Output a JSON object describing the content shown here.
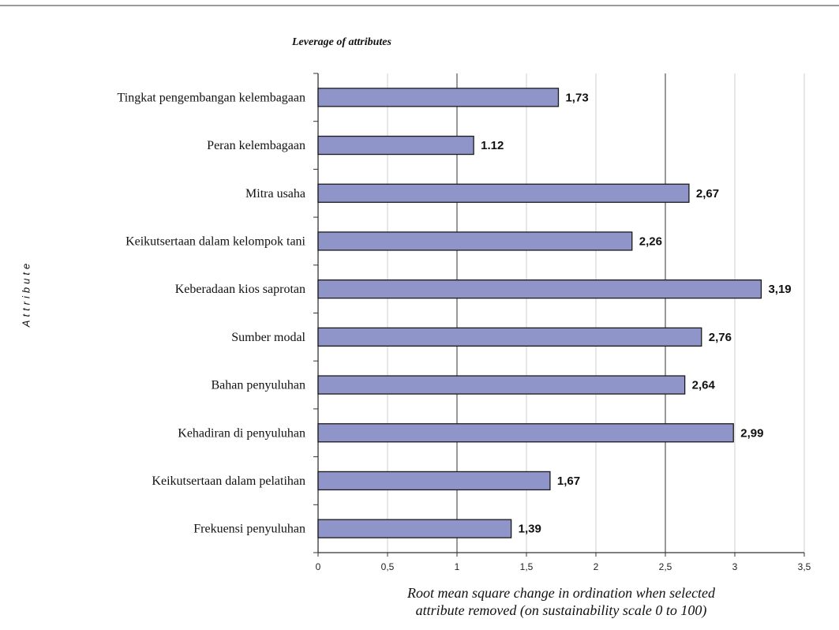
{
  "chart_data": {
    "type": "bar",
    "orientation": "horizontal",
    "title": "Leverage of attributes",
    "xlabel_lines": [
      "Root mean square change in ordination when selected",
      "attribute removed (on sustainability scale 0 to 100)"
    ],
    "ylabel": "Attribute",
    "xlim": [
      0,
      3.5
    ],
    "x_ticks": [
      "0",
      "0,5",
      "1",
      "1,5",
      "2",
      "2,5",
      "3",
      "3,5"
    ],
    "categories": [
      "Tingkat pengembangan kelembagaan",
      "Peran kelembagaan",
      "Mitra usaha",
      "Keikutsertaan dalam kelompok tani",
      "Keberadaan kios saprotan",
      "Sumber modal",
      "Bahan penyuluhan",
      "Kehadiran di penyuluhan",
      "Keikutsertaan dalam pelatihan",
      "Frekuensi penyuluhan"
    ],
    "values": [
      1.73,
      1.12,
      2.67,
      2.26,
      3.19,
      2.76,
      2.64,
      2.99,
      1.67,
      1.39
    ],
    "value_labels": [
      "1,73",
      "1.12",
      "2,67",
      "2,26",
      "3,19",
      "2,76",
      "2,64",
      "2,99",
      "1,67",
      "1,39"
    ],
    "bar_color": "#8f95c9",
    "grid": true,
    "legend": "none"
  }
}
